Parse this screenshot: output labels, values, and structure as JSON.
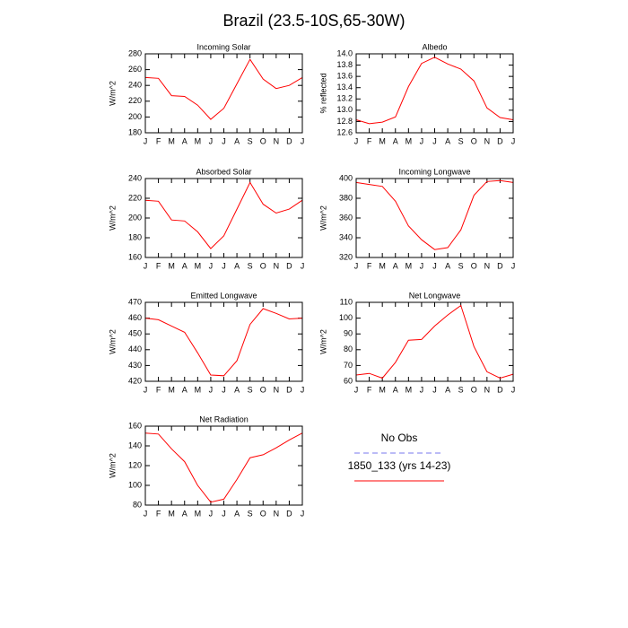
{
  "title": "Brazil (23.5-10S,65-30W)",
  "legend": [
    {
      "name": "No Obs",
      "color": "#7777ee",
      "dash": true
    },
    {
      "name": "1850_133 (yrs 14-23)",
      "color": "#ff0000",
      "dash": false
    }
  ],
  "chart_data": [
    {
      "type": "line",
      "title": "Incoming Solar",
      "y_label": "W/m^2",
      "categories": [
        "J",
        "F",
        "M",
        "A",
        "M",
        "J",
        "J",
        "A",
        "S",
        "O",
        "N",
        "D",
        "J"
      ],
      "color": "#ff0000",
      "values": [
        250,
        249,
        227,
        226,
        215,
        197,
        211,
        242,
        273,
        248,
        236,
        240,
        250
      ],
      "ylim": [
        180,
        280
      ],
      "yticks": [
        180,
        200,
        220,
        240,
        260,
        280
      ]
    },
    {
      "type": "line",
      "title": "Albedo",
      "y_label": "% reflected",
      "categories": [
        "J",
        "F",
        "M",
        "A",
        "M",
        "J",
        "J",
        "A",
        "S",
        "O",
        "N",
        "D",
        "J"
      ],
      "color": "#ff0000",
      "values": [
        12.83,
        12.76,
        12.79,
        12.88,
        13.42,
        13.83,
        13.94,
        13.82,
        13.73,
        13.52,
        13.04,
        12.87,
        12.83
      ],
      "ylim": [
        12.6,
        14.0
      ],
      "yticks": [
        12.6,
        12.8,
        {
          "value": 13,
          "label": "13.0"
        },
        13.2,
        13.4,
        13.6,
        13.8,
        {
          "value": 14,
          "label": "14.0"
        }
      ]
    },
    {
      "type": "line",
      "title": "Absorbed Solar",
      "y_label": "W/m^2",
      "categories": [
        "J",
        "F",
        "M",
        "A",
        "M",
        "J",
        "J",
        "A",
        "S",
        "O",
        "N",
        "D",
        "J"
      ],
      "color": "#ff0000",
      "values": [
        218,
        217,
        198,
        197,
        186,
        169,
        182,
        209,
        236,
        214,
        205,
        209,
        218
      ],
      "ylim": [
        160,
        240
      ],
      "yticks": [
        160,
        180,
        200,
        220,
        240
      ]
    },
    {
      "type": "line",
      "title": "Incoming Longwave",
      "y_label": "W/m^2",
      "categories": [
        "J",
        "F",
        "M",
        "A",
        "M",
        "J",
        "J",
        "A",
        "S",
        "O",
        "N",
        "D",
        "J"
      ],
      "color": "#ff0000",
      "values": [
        396,
        394,
        392,
        377,
        352,
        338,
        328,
        330,
        348,
        383,
        397,
        398,
        396
      ],
      "ylim": [
        320,
        400
      ],
      "yticks": [
        320,
        340,
        360,
        380,
        400
      ]
    },
    {
      "type": "line",
      "title": "Emitted Longwave",
      "y_label": "W/m^2",
      "categories": [
        "J",
        "F",
        "M",
        "A",
        "M",
        "J",
        "J",
        "A",
        "S",
        "O",
        "N",
        "D",
        "J"
      ],
      "color": "#ff0000",
      "values": [
        460,
        459,
        455,
        451,
        438,
        424,
        423.5,
        433,
        456,
        466,
        463,
        459.5,
        460
      ],
      "ylim": [
        420,
        470
      ],
      "yticks": [
        420,
        430,
        440,
        450,
        460,
        470
      ]
    },
    {
      "type": "line",
      "title": "Net Longwave",
      "y_label": "W/m^2",
      "categories": [
        "J",
        "F",
        "M",
        "A",
        "M",
        "J",
        "J",
        "A",
        "S",
        "O",
        "N",
        "D",
        "J"
      ],
      "color": "#ff0000",
      "values": [
        64,
        65,
        62,
        72,
        86,
        86.5,
        95,
        102,
        108,
        82,
        66,
        62,
        64.5
      ],
      "ylim": [
        60,
        110
      ],
      "yticks": [
        60,
        70,
        80,
        90,
        100,
        110
      ]
    },
    {
      "type": "line",
      "title": "Net Radiation",
      "y_label": "W/m^2",
      "categories": [
        "J",
        "F",
        "M",
        "A",
        "M",
        "J",
        "J",
        "A",
        "S",
        "O",
        "N",
        "D",
        "J"
      ],
      "color": "#ff0000",
      "values": [
        153,
        152,
        137,
        124,
        100,
        83,
        86,
        106,
        128,
        131,
        138,
        146,
        153
      ],
      "ylim": [
        80,
        160
      ],
      "yticks": [
        80,
        100,
        120,
        140,
        160
      ]
    }
  ]
}
